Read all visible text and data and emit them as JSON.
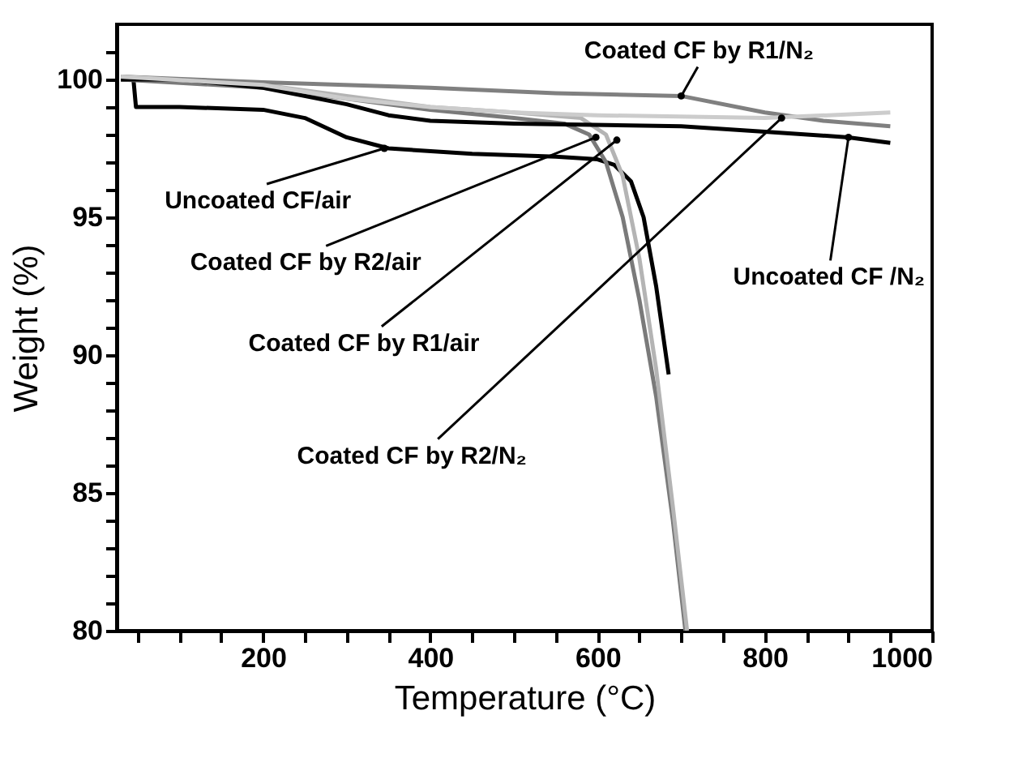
{
  "chart_data": {
    "type": "line",
    "xlabel": "Temperature (°C)",
    "ylabel": "Weight (%)",
    "xlim": [
      25,
      1000
    ],
    "ylim": [
      80,
      102
    ],
    "xticks": [
      {
        "value": 50,
        "label": null
      },
      {
        "value": 100,
        "label": null
      },
      {
        "value": 150,
        "label": null
      },
      200,
      {
        "value": 250,
        "label": null
      },
      {
        "value": 300,
        "label": null
      },
      {
        "value": 350,
        "label": null
      },
      400,
      {
        "value": 450,
        "label": null
      },
      {
        "value": 500,
        "label": null
      },
      {
        "value": 550,
        "label": null
      },
      600,
      {
        "value": 650,
        "label": null
      },
      {
        "value": 700,
        "label": null
      },
      {
        "value": 750,
        "label": null
      },
      800,
      {
        "value": 850,
        "label": null
      },
      {
        "value": 900,
        "label": null
      },
      {
        "value": 950,
        "label": null
      },
      1000
    ],
    "yticks": [
      80,
      {
        "value": 81,
        "label": null
      },
      {
        "value": 82,
        "label": null
      },
      {
        "value": 83,
        "label": null
      },
      {
        "value": 84,
        "label": null
      },
      85,
      {
        "value": 86,
        "label": null
      },
      {
        "value": 87,
        "label": null
      },
      {
        "value": 88,
        "label": null
      },
      {
        "value": 89,
        "label": null
      },
      90,
      {
        "value": 91,
        "label": null
      },
      {
        "value": 92,
        "label": null
      },
      {
        "value": 93,
        "label": null
      },
      {
        "value": 94,
        "label": null
      },
      95,
      {
        "value": 96,
        "label": null
      },
      {
        "value": 97,
        "label": null
      },
      {
        "value": 98,
        "label": null
      },
      {
        "value": 99,
        "label": null
      },
      100,
      {
        "value": 101,
        "label": null
      }
    ],
    "marker": "none",
    "line_style": "solid",
    "series": [
      {
        "color": "#000000",
        "x": [
          30,
          45,
          48,
          100,
          200,
          250,
          300,
          350,
          450,
          550,
          600,
          620,
          640,
          655,
          670,
          685
        ],
        "values": [
          100,
          100,
          99.0,
          99.0,
          98.9,
          98.6,
          97.9,
          97.5,
          97.3,
          97.2,
          97.1,
          96.9,
          96.3,
          95.0,
          92.5,
          89.3
        ]
      },
      {
        "color": "#7a7a7a",
        "x": [
          30,
          200,
          300,
          400,
          500,
          560,
          590,
          610,
          630,
          650,
          670,
          690,
          705
        ],
        "values": [
          100,
          99.7,
          99.3,
          98.9,
          98.6,
          98.4,
          98.0,
          97.0,
          95.0,
          92.0,
          88.5,
          84,
          80
        ]
      },
      {
        "color": "#b4b4b4",
        "x": [
          30,
          200,
          300,
          400,
          500,
          580,
          610,
          630,
          650,
          670,
          690,
          707
        ],
        "values": [
          100.1,
          99.8,
          99.4,
          99.0,
          98.8,
          98.6,
          98.0,
          96.5,
          93.5,
          89.5,
          84.5,
          80
        ]
      },
      {
        "color": "#000000",
        "x": [
          30,
          100,
          200,
          300,
          350,
          400,
          500,
          700,
          800,
          900,
          950
        ],
        "values": [
          100,
          100,
          99.7,
          99.1,
          98.7,
          98.5,
          98.4,
          98.3,
          98.1,
          97.9,
          97.7
        ]
      },
      {
        "color": "#808080",
        "x": [
          30,
          200,
          400,
          550,
          700,
          800,
          870,
          950
        ],
        "values": [
          100.1,
          99.9,
          99.7,
          99.5,
          99.4,
          98.8,
          98.5,
          98.3
        ]
      },
      {
        "color": "#cccccc",
        "x": [
          30,
          200,
          300,
          400,
          500,
          600,
          800,
          950
        ],
        "values": [
          100.1,
          99.8,
          99.3,
          99.0,
          98.8,
          98.7,
          98.6,
          98.8
        ]
      }
    ],
    "annotations": [
      {
        "text": "Coated CF by R1/N₂",
        "x": 700,
        "y": 99.4
      },
      {
        "text": "Uncoated CF/air",
        "x": 345,
        "y": 97.5
      },
      {
        "text": "Coated CF by R2/air",
        "x": 598,
        "y": 97.9
      },
      {
        "text": "Uncoated CF /N₂",
        "x": 900,
        "y": 97.9
      },
      {
        "text": "Coated CF by R1/air",
        "x": 623,
        "y": 97.8
      },
      {
        "text": "Coated CF by R2/N₂",
        "x": 820,
        "y": 98.6
      }
    ]
  }
}
